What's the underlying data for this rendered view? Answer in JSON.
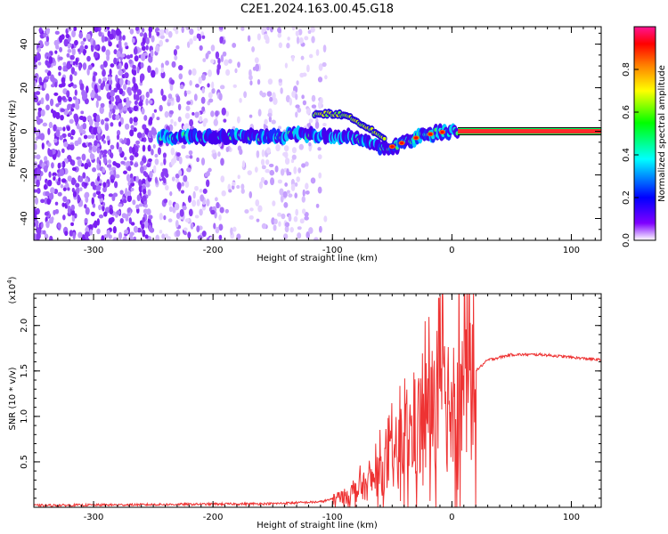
{
  "title": "C2E1.2024.163.00.45.G18",
  "chart_data": [
    {
      "type": "heatmap",
      "xlabel": "Height of straight line (km)",
      "ylabel": "Frequency (Hz)",
      "xlim": [
        -350,
        125
      ],
      "ylim": [
        -50,
        48
      ],
      "x_ticks": [
        -300,
        -200,
        -100,
        0,
        100
      ],
      "y_ticks": [
        -40,
        -20,
        0,
        20,
        40
      ],
      "colorbar": {
        "label": "Normalized spectral amplitude",
        "range": [
          0,
          1
        ],
        "ticks": [
          "0.0",
          "0.2",
          "0.4",
          "0.6",
          "0.8"
        ],
        "colors": [
          "#ffffff",
          "#7f00ff",
          "#0000ff",
          "#00ffff",
          "#00ff00",
          "#ffff00",
          "#ff7f00",
          "#ff0000",
          "#ff1493"
        ]
      },
      "signal_track": [
        {
          "x": -245,
          "f": -2.5
        },
        {
          "x": -200,
          "f": -2.5
        },
        {
          "x": -150,
          "f": -2.0
        },
        {
          "x": -110,
          "f": -1.5
        },
        {
          "x": -90,
          "f": -2.5
        },
        {
          "x": -70,
          "f": -5
        },
        {
          "x": -55,
          "f": -8
        },
        {
          "x": -40,
          "f": -5
        },
        {
          "x": -25,
          "f": -2
        },
        {
          "x": -10,
          "f": -0.5
        },
        {
          "x": 0,
          "f": 0
        },
        {
          "x": 125,
          "f": 0
        }
      ],
      "upper_branch": [
        {
          "x": -115,
          "f": 8
        },
        {
          "x": -95,
          "f": 8
        },
        {
          "x": -80,
          "f": 5
        },
        {
          "x": -65,
          "f": 0
        },
        {
          "x": -55,
          "f": -4
        }
      ]
    },
    {
      "type": "line",
      "xlabel": "Height of straight line (km)",
      "ylabel": "SNR (10 * v/v)",
      "y_multiplier": "(x10",
      "y_multiplier_exp": "4",
      "y_multiplier_close": ")",
      "xlim": [
        -350,
        125
      ],
      "ylim": [
        0,
        2.35
      ],
      "x_ticks": [
        -300,
        -200,
        -100,
        0,
        100
      ],
      "y_ticks": [
        "0.5",
        "1.0",
        "1.5",
        "2.0"
      ],
      "color": "#ee3333",
      "envelope": [
        {
          "x": -350,
          "y": 0.02
        },
        {
          "x": -250,
          "y": 0.03
        },
        {
          "x": -150,
          "y": 0.04
        },
        {
          "x": -110,
          "y": 0.06
        },
        {
          "x": -90,
          "y": 0.12
        },
        {
          "x": -70,
          "y": 0.25
        },
        {
          "x": -55,
          "y": 0.45
        },
        {
          "x": -40,
          "y": 0.7
        },
        {
          "x": -25,
          "y": 0.95
        },
        {
          "x": -10,
          "y": 1.15
        },
        {
          "x": 0,
          "y": 1.25
        },
        {
          "x": 10,
          "y": 1.3
        },
        {
          "x": 20,
          "y": 1.5
        },
        {
          "x": 30,
          "y": 1.62
        },
        {
          "x": 50,
          "y": 1.68
        },
        {
          "x": 75,
          "y": 1.68
        },
        {
          "x": 100,
          "y": 1.65
        },
        {
          "x": 125,
          "y": 1.62
        }
      ]
    }
  ]
}
